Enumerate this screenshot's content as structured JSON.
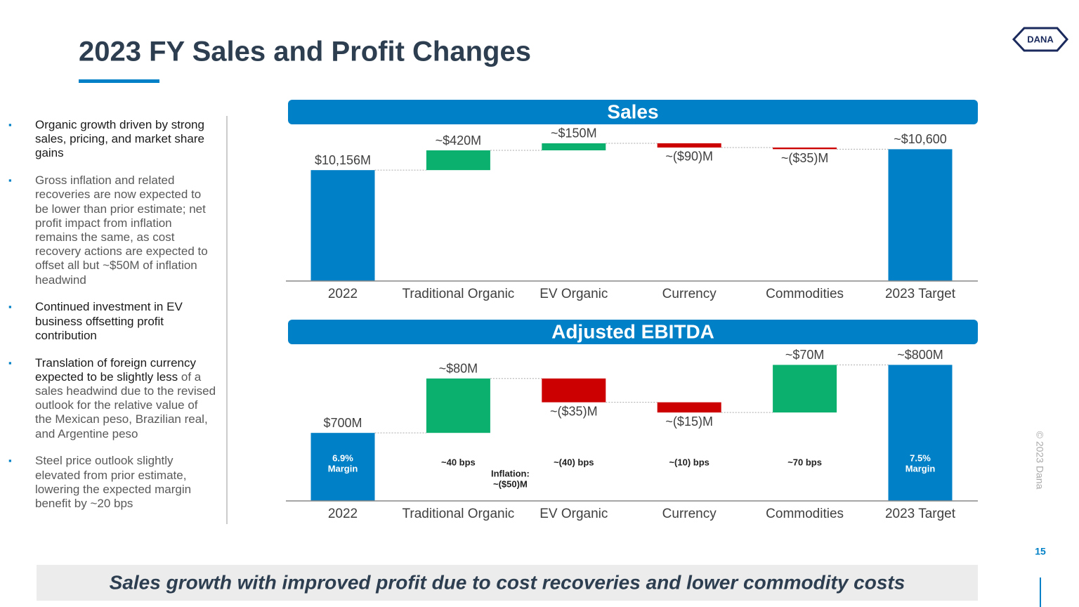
{
  "title": "2023 FY Sales and Profit Changes",
  "logo": "DANA",
  "bullets": [
    {
      "strong": "Organic growth driven by strong sales, pricing, and market share gains"
    },
    {
      "rest": "Gross inflation and related recoveries are now expected to be lower than prior estimate; net profit impact from inflation remains the same, as cost recovery actions are expected to offset all but ~$50M of inflation headwind"
    },
    {
      "strong": "Continued investment in EV business offsetting profit contribution"
    },
    {
      "strong": "Translation of foreign currency expected to be slightly less",
      "rest": "of a sales headwind due to the revised outlook for the relative value of the Mexican peso, Brazilian real, and Argentine peso"
    },
    {
      "rest": "Steel price outlook slightly elevated from prior estimate, lowering the expected margin benefit by ~20 bps"
    }
  ],
  "footer": "Sales growth with improved profit due to cost recoveries and lower commodity costs",
  "page_number": "15",
  "copyright": "© 2023 Dana",
  "chart_data": [
    {
      "type": "waterfall",
      "title": "Sales",
      "categories": [
        "2022",
        "Traditional Organic",
        "EV Organic",
        "Currency",
        "Commodities",
        "2023 Target"
      ],
      "values": [
        10156,
        420,
        150,
        -90,
        -35,
        10600
      ],
      "value_labels": [
        "$10,156M",
        "~$420M",
        "~$150M",
        "~($90)M",
        "~($35)M",
        "~$10,600"
      ],
      "measure": [
        "total",
        "relative",
        "relative",
        "relative",
        "relative",
        "total"
      ],
      "colors": {
        "total": "#0080c6",
        "increase": "#0bb06f",
        "decrease": "#cc0000"
      },
      "ylim": [
        7800,
        10800
      ]
    },
    {
      "type": "waterfall",
      "title": "Adjusted EBITDA",
      "categories": [
        "2022",
        "Traditional Organic",
        "EV Organic",
        "Currency",
        "Commodities",
        "2023 Target"
      ],
      "values": [
        700,
        80,
        -35,
        -15,
        70,
        800
      ],
      "value_labels": [
        "$700M",
        "~$80M",
        "~($35)M",
        "~($15)M",
        "~$70M",
        "~$800M"
      ],
      "measure": [
        "total",
        "relative",
        "relative",
        "relative",
        "relative",
        "total"
      ],
      "colors": {
        "total": "#0080c6",
        "increase": "#0bb06f",
        "decrease": "#cc0000"
      },
      "ylim": [
        600,
        820
      ],
      "bar_notes": [
        [
          "6.9%",
          "Margin"
        ],
        [
          "~40 bps"
        ],
        [
          "~(40) bps"
        ],
        [
          "~(10) bps"
        ],
        [
          "~70 bps"
        ],
        [
          "7.5%",
          "Margin"
        ]
      ],
      "annotation": [
        "Inflation:",
        "~($50)M"
      ]
    }
  ]
}
